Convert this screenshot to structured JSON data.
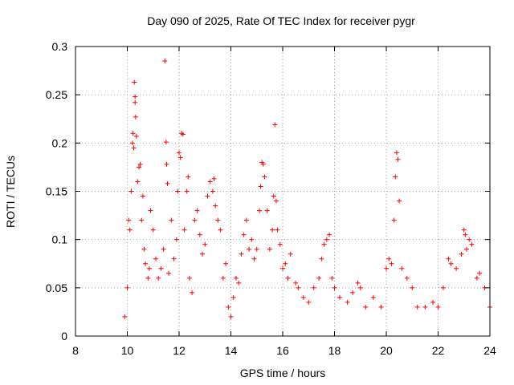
{
  "chart_data": {
    "type": "scatter",
    "title": "Day 090 of 2025, Rate Of TEC Index for receiver pygr",
    "xlabel": "GPS time / hours",
    "ylabel": "ROTI / TECUs",
    "xlim": [
      8,
      24
    ],
    "ylim": [
      0,
      0.3
    ],
    "x_ticks": [
      "8",
      "10",
      "12",
      "14",
      "16",
      "18",
      "20",
      "22",
      "24"
    ],
    "y_ticks": [
      "0",
      "0.05",
      "0.1",
      "0.15",
      "0.2",
      "0.25",
      "0.3"
    ],
    "grid": true,
    "marker": "plus",
    "color": "#ff0000",
    "series": [
      {
        "values": [
          [
            9.9,
            0.02
          ],
          [
            10.0,
            0.05
          ],
          [
            10.05,
            0.12
          ],
          [
            10.1,
            0.11
          ],
          [
            10.15,
            0.15
          ],
          [
            10.2,
            0.2
          ],
          [
            10.22,
            0.21
          ],
          [
            10.25,
            0.195
          ],
          [
            10.27,
            0.263
          ],
          [
            10.3,
            0.248
          ],
          [
            10.3,
            0.242
          ],
          [
            10.32,
            0.227
          ],
          [
            10.35,
            0.207
          ],
          [
            10.4,
            0.16
          ],
          [
            10.45,
            0.175
          ],
          [
            10.5,
            0.178
          ],
          [
            10.55,
            0.12
          ],
          [
            10.6,
            0.145
          ],
          [
            10.65,
            0.09
          ],
          [
            10.7,
            0.075
          ],
          [
            10.8,
            0.06
          ],
          [
            10.85,
            0.07
          ],
          [
            10.9,
            0.13
          ],
          [
            11.0,
            0.11
          ],
          [
            11.1,
            0.08
          ],
          [
            11.2,
            0.06
          ],
          [
            11.3,
            0.07
          ],
          [
            11.4,
            0.09
          ],
          [
            11.45,
            0.285
          ],
          [
            11.5,
            0.201
          ],
          [
            11.52,
            0.178
          ],
          [
            11.55,
            0.158
          ],
          [
            11.6,
            0.065
          ],
          [
            11.7,
            0.12
          ],
          [
            11.8,
            0.08
          ],
          [
            11.9,
            0.1
          ],
          [
            11.95,
            0.15
          ],
          [
            12.0,
            0.19
          ],
          [
            12.05,
            0.185
          ],
          [
            12.1,
            0.21
          ],
          [
            12.15,
            0.209
          ],
          [
            12.2,
            0.11
          ],
          [
            12.3,
            0.15
          ],
          [
            12.35,
            0.165
          ],
          [
            12.4,
            0.06
          ],
          [
            12.5,
            0.045
          ],
          [
            12.6,
            0.12
          ],
          [
            12.7,
            0.13
          ],
          [
            12.8,
            0.105
          ],
          [
            12.9,
            0.085
          ],
          [
            13.0,
            0.095
          ],
          [
            13.1,
            0.145
          ],
          [
            13.2,
            0.16
          ],
          [
            13.3,
            0.15
          ],
          [
            13.35,
            0.163
          ],
          [
            13.4,
            0.135
          ],
          [
            13.5,
            0.12
          ],
          [
            13.6,
            0.11
          ],
          [
            13.7,
            0.06
          ],
          [
            13.8,
            0.075
          ],
          [
            13.9,
            0.03
          ],
          [
            14.0,
            0.02
          ],
          [
            14.1,
            0.04
          ],
          [
            14.2,
            0.06
          ],
          [
            14.3,
            0.055
          ],
          [
            14.4,
            0.085
          ],
          [
            14.5,
            0.105
          ],
          [
            14.6,
            0.12
          ],
          [
            14.7,
            0.09
          ],
          [
            14.8,
            0.1
          ],
          [
            14.9,
            0.08
          ],
          [
            15.0,
            0.09
          ],
          [
            15.1,
            0.13
          ],
          [
            15.15,
            0.155
          ],
          [
            15.2,
            0.18
          ],
          [
            15.25,
            0.178
          ],
          [
            15.3,
            0.165
          ],
          [
            15.4,
            0.13
          ],
          [
            15.5,
            0.09
          ],
          [
            15.6,
            0.11
          ],
          [
            15.65,
            0.145
          ],
          [
            15.7,
            0.219
          ],
          [
            15.75,
            0.14
          ],
          [
            15.8,
            0.11
          ],
          [
            15.9,
            0.095
          ],
          [
            16.0,
            0.07
          ],
          [
            16.1,
            0.075
          ],
          [
            16.2,
            0.06
          ],
          [
            16.3,
            0.085
          ],
          [
            16.5,
            0.055
          ],
          [
            16.6,
            0.05
          ],
          [
            16.8,
            0.04
          ],
          [
            17.0,
            0.035
          ],
          [
            17.2,
            0.05
          ],
          [
            17.4,
            0.06
          ],
          [
            17.5,
            0.08
          ],
          [
            17.6,
            0.095
          ],
          [
            17.7,
            0.1
          ],
          [
            17.8,
            0.105
          ],
          [
            17.9,
            0.06
          ],
          [
            18.0,
            0.05
          ],
          [
            18.2,
            0.04
          ],
          [
            18.5,
            0.035
          ],
          [
            18.7,
            0.045
          ],
          [
            18.9,
            0.055
          ],
          [
            19.0,
            0.05
          ],
          [
            19.2,
            0.03
          ],
          [
            19.5,
            0.04
          ],
          [
            19.8,
            0.03
          ],
          [
            20.0,
            0.07
          ],
          [
            20.1,
            0.08
          ],
          [
            20.2,
            0.075
          ],
          [
            20.3,
            0.12
          ],
          [
            20.35,
            0.165
          ],
          [
            20.4,
            0.19
          ],
          [
            20.45,
            0.183
          ],
          [
            20.5,
            0.14
          ],
          [
            20.6,
            0.07
          ],
          [
            20.8,
            0.06
          ],
          [
            21.0,
            0.05
          ],
          [
            21.2,
            0.03
          ],
          [
            21.5,
            0.03
          ],
          [
            21.8,
            0.035
          ],
          [
            22.0,
            0.03
          ],
          [
            22.2,
            0.05
          ],
          [
            22.4,
            0.08
          ],
          [
            22.5,
            0.075
          ],
          [
            22.7,
            0.07
          ],
          [
            22.9,
            0.085
          ],
          [
            23.0,
            0.11
          ],
          [
            23.05,
            0.105
          ],
          [
            23.1,
            0.09
          ],
          [
            23.2,
            0.1
          ],
          [
            23.3,
            0.095
          ],
          [
            23.5,
            0.06
          ],
          [
            23.6,
            0.065
          ],
          [
            23.8,
            0.05
          ],
          [
            24.0,
            0.03
          ]
        ]
      }
    ]
  }
}
